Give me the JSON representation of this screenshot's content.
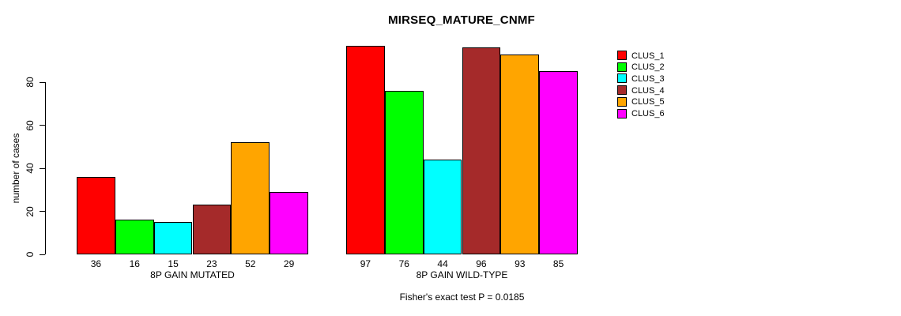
{
  "chart_data": {
    "type": "bar",
    "title": "MIRSEQ_MATURE_CNMF",
    "ylabel": "number of cases",
    "xlabel": "",
    "footnote": "Fisher's exact test P = 0.0185",
    "yticks": [
      0,
      20,
      40,
      60,
      80
    ],
    "ylim": [
      0,
      100
    ],
    "grid": false,
    "legend_position": "right",
    "series": [
      {
        "name": "CLUS_1",
        "color": "#FF0000"
      },
      {
        "name": "CLUS_2",
        "color": "#00FF00"
      },
      {
        "name": "CLUS_3",
        "color": "#00FFFF"
      },
      {
        "name": "CLUS_4",
        "color": "#A52A2A"
      },
      {
        "name": "CLUS_5",
        "color": "#FFA500"
      },
      {
        "name": "CLUS_6",
        "color": "#FF00FF"
      }
    ],
    "groups": [
      {
        "label": "8P GAIN MUTATED",
        "values": [
          36,
          16,
          15,
          23,
          52,
          29
        ]
      },
      {
        "label": "8P GAIN WILD-TYPE",
        "values": [
          97,
          76,
          44,
          96,
          93,
          85
        ]
      }
    ]
  }
}
